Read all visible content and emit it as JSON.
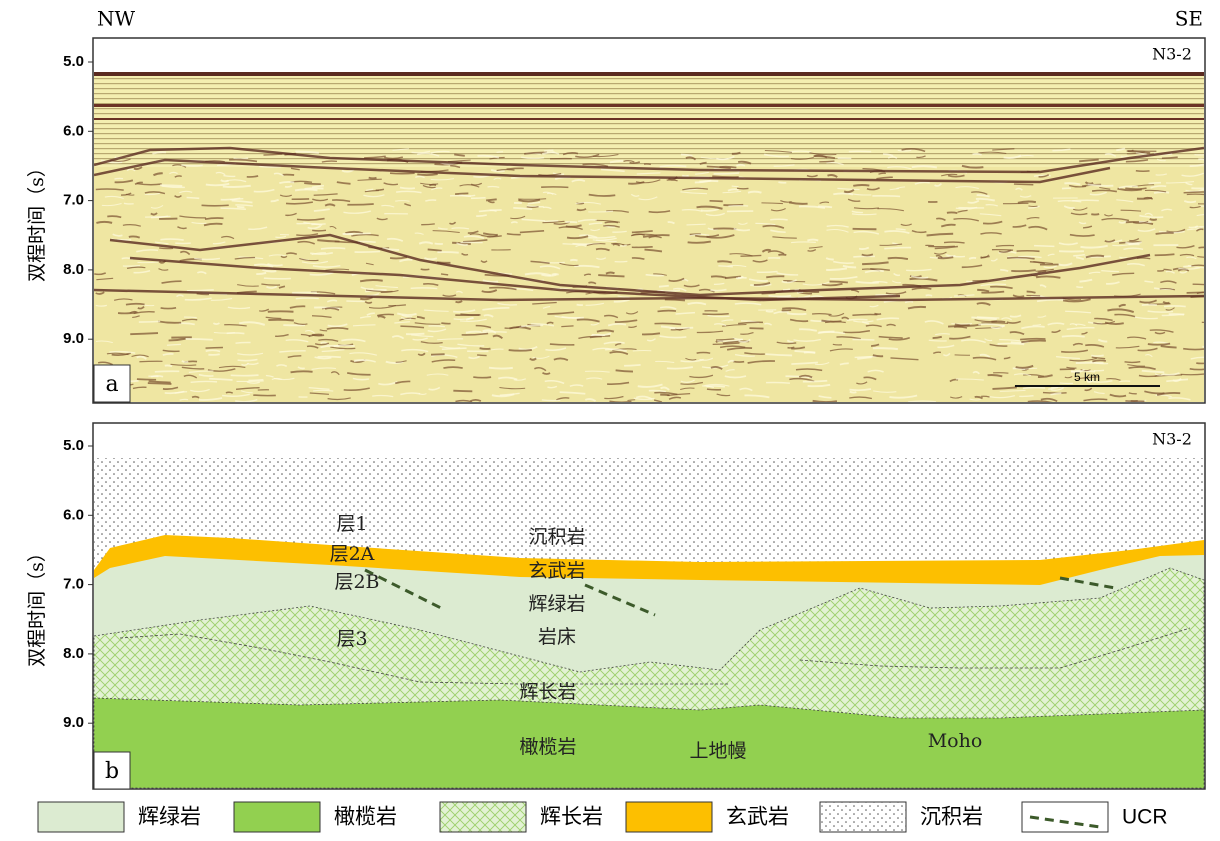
{
  "header": {
    "left": "NW",
    "right": "SE"
  },
  "panel_a": {
    "label": "a",
    "section": "N3-2",
    "y_axis_label": "双程时间（s）",
    "yticks": [
      "5.0",
      "6.0",
      "7.0",
      "8.0",
      "9.0"
    ],
    "scale_bar": "5 km"
  },
  "panel_b": {
    "label": "b",
    "section": "N3-2",
    "y_axis_label": "双程时间（s）",
    "yticks": [
      "5.0",
      "6.0",
      "7.0",
      "8.0",
      "9.0"
    ],
    "annotations": [
      "层1",
      "层2A",
      "层2B",
      "层3",
      "沉积岩",
      "玄武岩",
      "辉绿岩",
      "岩床",
      "辉长岩",
      "橄榄岩",
      "上地幔",
      "Moho"
    ]
  },
  "legend": [
    "辉绿岩",
    "橄榄岩",
    "辉长岩",
    "玄武岩",
    "沉积岩",
    "UCR"
  ]
}
